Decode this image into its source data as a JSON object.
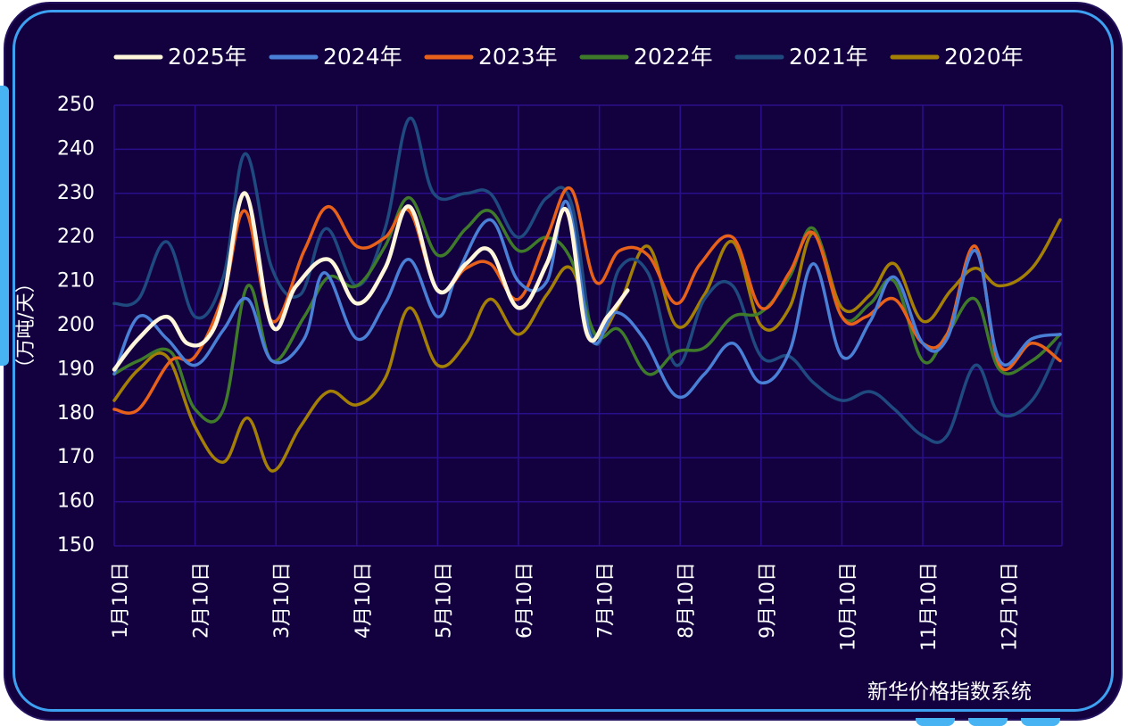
{
  "source_label": "新华价格指数系统",
  "colors": {
    "background": "#13003f",
    "frame": "#3da0f0",
    "grid": "#2a0f8c",
    "text": "#ffffff"
  },
  "chart_data": {
    "type": "line",
    "title": "",
    "ylabel": "（万吨/天）",
    "xlabel": "",
    "ylim": [
      150,
      250
    ],
    "yticks": [
      150,
      160,
      170,
      180,
      190,
      200,
      210,
      220,
      230,
      240,
      250
    ],
    "xlim": [
      0,
      11.7
    ],
    "xtick_labels": [
      "1月10日",
      "2月10日",
      "3月10日",
      "4月10日",
      "5月10日",
      "6月10日",
      "7月10日",
      "8月10日",
      "9月10日",
      "10月10日",
      "11月10日",
      "12月10日"
    ],
    "grid": true,
    "legend_position": "top",
    "series": [
      {
        "name": "2025年",
        "color": "#fff6dc",
        "width": 4.5,
        "points": [
          [
            0,
            190
          ],
          [
            0.3,
            197
          ],
          [
            0.65,
            202
          ],
          [
            0.9,
            196
          ],
          [
            1.15,
            197
          ],
          [
            1.35,
            206
          ],
          [
            1.62,
            230
          ],
          [
            1.95,
            200
          ],
          [
            2.25,
            209
          ],
          [
            2.65,
            215
          ],
          [
            3.0,
            205
          ],
          [
            3.35,
            213
          ],
          [
            3.65,
            227
          ],
          [
            4.0,
            208
          ],
          [
            4.35,
            214
          ],
          [
            4.65,
            217
          ],
          [
            5.0,
            204
          ],
          [
            5.35,
            214
          ],
          [
            5.6,
            226
          ],
          [
            5.85,
            198
          ],
          [
            6.1,
            202
          ],
          [
            6.35,
            208
          ]
        ]
      },
      {
        "name": "2024年",
        "color": "#4a7fd6",
        "width": 3.5,
        "points": [
          [
            0,
            189
          ],
          [
            0.3,
            202
          ],
          [
            0.65,
            197
          ],
          [
            1.0,
            191
          ],
          [
            1.35,
            199
          ],
          [
            1.65,
            206
          ],
          [
            1.95,
            192
          ],
          [
            2.35,
            197
          ],
          [
            2.6,
            212
          ],
          [
            3.0,
            197
          ],
          [
            3.35,
            205
          ],
          [
            3.65,
            215
          ],
          [
            4.0,
            202
          ],
          [
            4.25,
            212
          ],
          [
            4.65,
            224
          ],
          [
            5.0,
            210
          ],
          [
            5.35,
            210
          ],
          [
            5.6,
            228
          ],
          [
            5.9,
            197
          ],
          [
            6.2,
            203
          ],
          [
            6.55,
            197
          ],
          [
            6.95,
            184
          ],
          [
            7.3,
            189
          ],
          [
            7.65,
            196
          ],
          [
            8.0,
            187
          ],
          [
            8.35,
            194
          ],
          [
            8.65,
            214
          ],
          [
            9.0,
            193
          ],
          [
            9.35,
            201
          ],
          [
            9.65,
            211
          ],
          [
            10.0,
            196
          ],
          [
            10.3,
            197
          ],
          [
            10.65,
            217
          ],
          [
            10.95,
            192
          ],
          [
            11.35,
            197
          ],
          [
            11.7,
            198
          ]
        ]
      },
      {
        "name": "2023年",
        "color": "#e8611a",
        "width": 3.5,
        "points": [
          [
            0,
            181
          ],
          [
            0.3,
            181
          ],
          [
            0.7,
            192
          ],
          [
            1.0,
            193
          ],
          [
            1.35,
            207
          ],
          [
            1.62,
            226
          ],
          [
            1.95,
            201
          ],
          [
            2.35,
            217
          ],
          [
            2.65,
            227
          ],
          [
            3.0,
            218
          ],
          [
            3.35,
            220
          ],
          [
            3.65,
            226
          ],
          [
            4.0,
            208
          ],
          [
            4.35,
            213
          ],
          [
            4.65,
            214
          ],
          [
            5.0,
            206
          ],
          [
            5.35,
            220
          ],
          [
            5.65,
            231
          ],
          [
            5.95,
            210
          ],
          [
            6.25,
            217
          ],
          [
            6.6,
            216
          ],
          [
            6.95,
            205
          ],
          [
            7.25,
            214
          ],
          [
            7.65,
            220
          ],
          [
            8.0,
            204
          ],
          [
            8.35,
            212
          ],
          [
            8.65,
            221
          ],
          [
            9.0,
            202
          ],
          [
            9.3,
            202
          ],
          [
            9.65,
            206
          ],
          [
            10.0,
            196
          ],
          [
            10.3,
            198
          ],
          [
            10.65,
            218
          ],
          [
            10.95,
            191
          ],
          [
            11.35,
            196
          ],
          [
            11.7,
            192
          ]
        ]
      },
      {
        "name": "2022年",
        "color": "#3e7a2a",
        "width": 3.5,
        "points": [
          [
            0,
            189
          ],
          [
            0.3,
            192
          ],
          [
            0.7,
            194
          ],
          [
            1.0,
            181
          ],
          [
            1.35,
            181
          ],
          [
            1.65,
            209
          ],
          [
            1.95,
            192
          ],
          [
            2.35,
            202
          ],
          [
            2.65,
            211
          ],
          [
            3.0,
            209
          ],
          [
            3.35,
            218
          ],
          [
            3.65,
            229
          ],
          [
            4.0,
            216
          ],
          [
            4.35,
            222
          ],
          [
            4.65,
            226
          ],
          [
            5.0,
            217
          ],
          [
            5.35,
            220
          ],
          [
            5.65,
            215
          ],
          [
            5.95,
            198
          ],
          [
            6.25,
            199
          ],
          [
            6.6,
            189
          ],
          [
            6.95,
            194
          ],
          [
            7.3,
            195
          ],
          [
            7.65,
            202
          ],
          [
            8.0,
            203
          ],
          [
            8.35,
            211
          ],
          [
            8.65,
            222
          ],
          [
            9.0,
            202
          ],
          [
            9.35,
            205
          ],
          [
            9.65,
            210
          ],
          [
            10.0,
            192
          ],
          [
            10.3,
            198
          ],
          [
            10.65,
            206
          ],
          [
            10.95,
            190
          ],
          [
            11.35,
            192
          ],
          [
            11.7,
            198
          ]
        ]
      },
      {
        "name": "2021年",
        "color": "#1f4a80",
        "width": 3.5,
        "points": [
          [
            0,
            205
          ],
          [
            0.3,
            206
          ],
          [
            0.65,
            219
          ],
          [
            1.0,
            202
          ],
          [
            1.35,
            211
          ],
          [
            1.62,
            239
          ],
          [
            1.95,
            213
          ],
          [
            2.3,
            207
          ],
          [
            2.62,
            222
          ],
          [
            3.0,
            209
          ],
          [
            3.35,
            222
          ],
          [
            3.65,
            247
          ],
          [
            3.95,
            230
          ],
          [
            4.35,
            230
          ],
          [
            4.65,
            230
          ],
          [
            5.0,
            220
          ],
          [
            5.35,
            229
          ],
          [
            5.65,
            228
          ],
          [
            5.95,
            196
          ],
          [
            6.25,
            213
          ],
          [
            6.6,
            212
          ],
          [
            6.95,
            191
          ],
          [
            7.3,
            206
          ],
          [
            7.65,
            209
          ],
          [
            8.0,
            193
          ],
          [
            8.35,
            193
          ],
          [
            8.65,
            187
          ],
          [
            9.0,
            183
          ],
          [
            9.35,
            185
          ],
          [
            9.65,
            181
          ],
          [
            10.0,
            175
          ],
          [
            10.3,
            175
          ],
          [
            10.65,
            191
          ],
          [
            10.95,
            180
          ],
          [
            11.35,
            183
          ],
          [
            11.7,
            196
          ]
        ]
      },
      {
        "name": "2020年",
        "color": "#a37f06",
        "width": 3.5,
        "points": [
          [
            0,
            183
          ],
          [
            0.3,
            190
          ],
          [
            0.65,
            193
          ],
          [
            1.0,
            177
          ],
          [
            1.35,
            169
          ],
          [
            1.65,
            179
          ],
          [
            1.95,
            167
          ],
          [
            2.3,
            177
          ],
          [
            2.65,
            185
          ],
          [
            3.0,
            182
          ],
          [
            3.35,
            188
          ],
          [
            3.65,
            204
          ],
          [
            4.0,
            191
          ],
          [
            4.35,
            196
          ],
          [
            4.65,
            206
          ],
          [
            5.0,
            198
          ],
          [
            5.35,
            207
          ],
          [
            5.65,
            213
          ],
          [
            5.95,
            198
          ],
          [
            6.25,
            205
          ],
          [
            6.6,
            218
          ],
          [
            6.95,
            200
          ],
          [
            7.3,
            207
          ],
          [
            7.65,
            219
          ],
          [
            8.0,
            200
          ],
          [
            8.35,
            204
          ],
          [
            8.65,
            221
          ],
          [
            9.0,
            204
          ],
          [
            9.35,
            207
          ],
          [
            9.65,
            214
          ],
          [
            10.0,
            201
          ],
          [
            10.35,
            208
          ],
          [
            10.65,
            213
          ],
          [
            10.95,
            209
          ],
          [
            11.35,
            213
          ],
          [
            11.7,
            224
          ]
        ]
      }
    ]
  }
}
